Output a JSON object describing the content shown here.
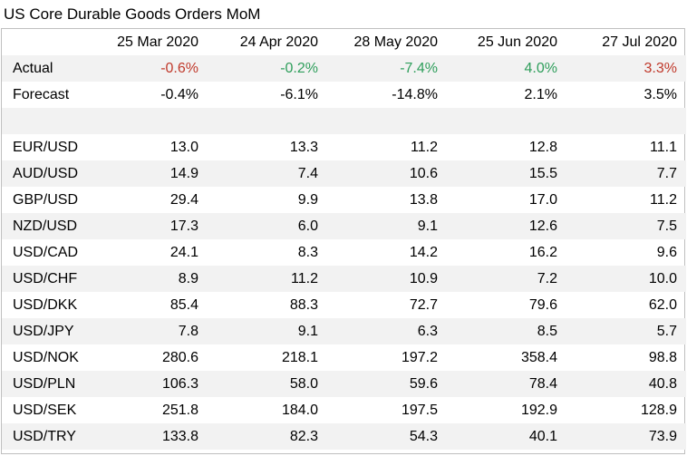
{
  "title": "US Core Durable Goods Orders MoM",
  "columns": [
    "25 Mar 2020",
    "24 Apr 2020",
    "28 May 2020",
    "25 Jun 2020",
    "27 Jul 2020"
  ],
  "actual": {
    "label": "Actual",
    "values": [
      "-0.6%",
      "-0.2%",
      "-7.4%",
      "4.0%",
      "3.3%"
    ],
    "colors": [
      "red",
      "green",
      "green",
      "green",
      "red"
    ]
  },
  "forecast": {
    "label": "Forecast",
    "values": [
      "-0.4%",
      "-6.1%",
      "-14.8%",
      "2.1%",
      "3.5%"
    ]
  },
  "pairs": [
    {
      "label": "EUR/USD",
      "values": [
        "13.0",
        "13.3",
        "11.2",
        "12.8",
        "11.1"
      ]
    },
    {
      "label": "AUD/USD",
      "values": [
        "14.9",
        "7.4",
        "10.6",
        "15.5",
        "7.7"
      ]
    },
    {
      "label": "GBP/USD",
      "values": [
        "29.4",
        "9.9",
        "13.8",
        "17.0",
        "11.2"
      ]
    },
    {
      "label": "NZD/USD",
      "values": [
        "17.3",
        "6.0",
        "9.1",
        "12.6",
        "7.5"
      ]
    },
    {
      "label": "USD/CAD",
      "values": [
        "24.1",
        "8.3",
        "14.2",
        "16.2",
        "9.6"
      ]
    },
    {
      "label": "USD/CHF",
      "values": [
        "8.9",
        "11.2",
        "10.9",
        "7.2",
        "10.0"
      ]
    },
    {
      "label": "USD/DKK",
      "values": [
        "85.4",
        "88.3",
        "72.7",
        "79.6",
        "62.0"
      ]
    },
    {
      "label": "USD/JPY",
      "values": [
        "7.8",
        "9.1",
        "6.3",
        "8.5",
        "5.7"
      ]
    },
    {
      "label": "USD/NOK",
      "values": [
        "280.6",
        "218.1",
        "197.2",
        "358.4",
        "98.8"
      ]
    },
    {
      "label": "USD/PLN",
      "values": [
        "106.3",
        "58.0",
        "59.6",
        "78.4",
        "40.8"
      ]
    },
    {
      "label": "USD/SEK",
      "values": [
        "251.8",
        "184.0",
        "197.5",
        "192.9",
        "128.9"
      ]
    },
    {
      "label": "USD/TRY",
      "values": [
        "133.8",
        "82.3",
        "54.3",
        "40.1",
        "73.9"
      ]
    }
  ]
}
